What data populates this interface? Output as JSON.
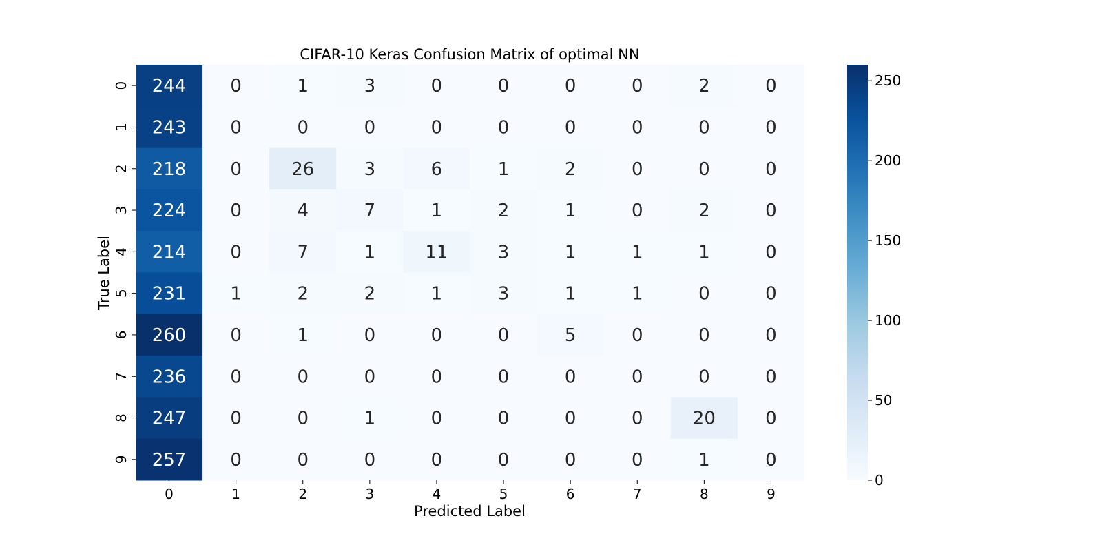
{
  "chart_data": {
    "type": "heatmap",
    "title": "CIFAR-10 Keras Confusion Matrix of optimal NN",
    "xlabel": "Predicted Label",
    "ylabel": "True Label",
    "x_categories": [
      "0",
      "1",
      "2",
      "3",
      "4",
      "5",
      "6",
      "7",
      "8",
      "9"
    ],
    "y_categories": [
      "0",
      "1",
      "2",
      "3",
      "4",
      "5",
      "6",
      "7",
      "8",
      "9"
    ],
    "matrix": [
      [
        244,
        0,
        1,
        3,
        0,
        0,
        0,
        0,
        2,
        0
      ],
      [
        243,
        0,
        0,
        0,
        0,
        0,
        0,
        0,
        0,
        0
      ],
      [
        218,
        0,
        26,
        3,
        6,
        1,
        2,
        0,
        0,
        0
      ],
      [
        224,
        0,
        4,
        7,
        1,
        2,
        1,
        0,
        2,
        0
      ],
      [
        214,
        0,
        7,
        1,
        11,
        3,
        1,
        1,
        1,
        0
      ],
      [
        231,
        1,
        2,
        2,
        1,
        3,
        1,
        1,
        0,
        0
      ],
      [
        260,
        0,
        1,
        0,
        0,
        0,
        5,
        0,
        0,
        0
      ],
      [
        236,
        0,
        0,
        0,
        0,
        0,
        0,
        0,
        0,
        0
      ],
      [
        247,
        0,
        0,
        1,
        0,
        0,
        0,
        0,
        20,
        0
      ],
      [
        257,
        0,
        0,
        0,
        0,
        0,
        0,
        0,
        1,
        0
      ]
    ],
    "colormap": "Blues",
    "color_min": "#f7fbff",
    "color_max": "#08306b",
    "colorbar": {
      "vmin": 0,
      "vmax": 260,
      "ticks": [
        0,
        50,
        100,
        150,
        200,
        250
      ]
    },
    "grid": false
  }
}
